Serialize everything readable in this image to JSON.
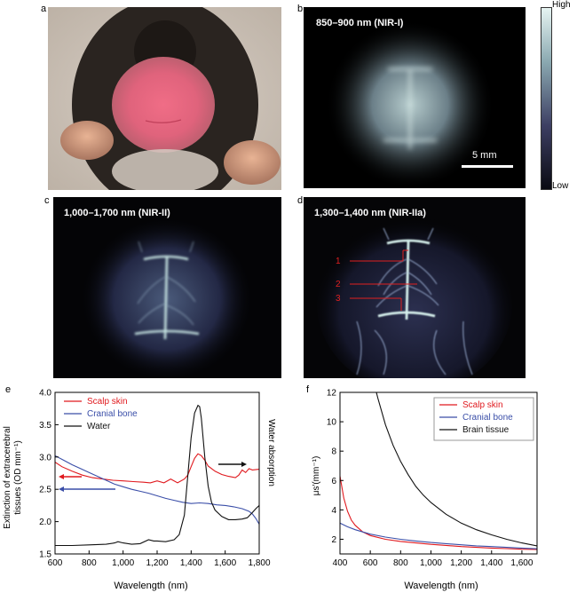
{
  "panels": {
    "a": {
      "label": "a"
    },
    "b": {
      "label": "b",
      "title": "850–900 nm (NIR-I)",
      "scalebar": "5 mm"
    },
    "c": {
      "label": "c",
      "title": "1,000–1,700 nm (NIR-II)"
    },
    "d": {
      "label": "d",
      "title": "1,300–1,400 nm (NIR-IIa)",
      "markers": [
        "1",
        "2",
        "3"
      ]
    },
    "e": {
      "label": "e"
    },
    "f": {
      "label": "f"
    }
  },
  "colorbar": {
    "high": "High",
    "low": "Low"
  },
  "colors": {
    "red": "#e0191e",
    "blue": "#3a4ea8",
    "black": "#111111"
  },
  "chart_data": [
    {
      "id": "e",
      "type": "line",
      "xlabel": "Wavelength (nm)",
      "ylabel_lines": [
        "Extinction of extracerebral",
        "tissues (OD mm⁻¹)"
      ],
      "ylabel_right": "Water absorption",
      "xlim": [
        600,
        1800
      ],
      "ylim": [
        1.5,
        4.0
      ],
      "xticks": [
        600,
        800,
        1000,
        1200,
        1400,
        1600,
        1800
      ],
      "xticklabels": [
        "600",
        "800",
        "1,000",
        "1,200",
        "1,400",
        "1,600",
        "1,800"
      ],
      "yticks": [
        1.5,
        2.0,
        2.5,
        3.0,
        3.5,
        4.0
      ],
      "yticklabels": [
        "1.5",
        "2.0",
        "2.5",
        "3.0",
        "3.5",
        "4.0"
      ],
      "legend_position": "top-left",
      "series": [
        {
          "name": "Scalp skin",
          "color": "#e0191e",
          "x": [
            600,
            640,
            700,
            760,
            820,
            880,
            940,
            1000,
            1060,
            1120,
            1160,
            1200,
            1240,
            1280,
            1320,
            1360,
            1380,
            1400,
            1420,
            1440,
            1460,
            1480,
            1500,
            1540,
            1580,
            1620,
            1660,
            1680,
            1700,
            1720,
            1740,
            1760,
            1800
          ],
          "y": [
            2.92,
            2.85,
            2.78,
            2.72,
            2.68,
            2.66,
            2.64,
            2.63,
            2.62,
            2.61,
            2.6,
            2.63,
            2.6,
            2.66,
            2.6,
            2.66,
            2.72,
            2.85,
            2.98,
            3.05,
            3.02,
            2.95,
            2.86,
            2.78,
            2.73,
            2.7,
            2.68,
            2.72,
            2.8,
            2.76,
            2.82,
            2.8,
            2.81
          ]
        },
        {
          "name": "Cranial bone",
          "color": "#3a4ea8",
          "x": [
            600,
            650,
            700,
            750,
            800,
            850,
            900,
            950,
            1000,
            1050,
            1100,
            1150,
            1200,
            1250,
            1300,
            1350,
            1400,
            1450,
            1500,
            1550,
            1600,
            1650,
            1700,
            1740,
            1760,
            1780,
            1800
          ],
          "y": [
            3.02,
            2.95,
            2.88,
            2.82,
            2.76,
            2.7,
            2.64,
            2.58,
            2.54,
            2.5,
            2.47,
            2.44,
            2.4,
            2.36,
            2.33,
            2.3,
            2.28,
            2.29,
            2.28,
            2.26,
            2.25,
            2.23,
            2.2,
            2.16,
            2.12,
            2.05,
            1.96
          ]
        },
        {
          "name": "Water",
          "color": "#111111",
          "x": [
            600,
            700,
            800,
            900,
            950,
            970,
            1000,
            1050,
            1100,
            1150,
            1180,
            1200,
            1250,
            1300,
            1330,
            1360,
            1380,
            1400,
            1420,
            1440,
            1450,
            1460,
            1480,
            1500,
            1520,
            1540,
            1580,
            1620,
            1660,
            1700,
            1730,
            1760,
            1780,
            1800
          ],
          "y": [
            1.63,
            1.63,
            1.64,
            1.65,
            1.67,
            1.69,
            1.67,
            1.65,
            1.66,
            1.72,
            1.7,
            1.7,
            1.69,
            1.72,
            1.8,
            2.1,
            2.7,
            3.3,
            3.68,
            3.8,
            3.78,
            3.6,
            3.0,
            2.55,
            2.3,
            2.18,
            2.08,
            2.03,
            2.03,
            2.04,
            2.06,
            2.14,
            2.2,
            2.25
          ]
        }
      ]
    },
    {
      "id": "f",
      "type": "line",
      "xlabel": "Wavelength (nm)",
      "ylabel": "μs′(mm⁻¹)",
      "xlim": [
        400,
        1700
      ],
      "ylim": [
        1,
        12
      ],
      "xticks": [
        400,
        600,
        800,
        1000,
        1200,
        1400,
        1600
      ],
      "xticklabels": [
        "400",
        "600",
        "800",
        "1,000",
        "1,200",
        "1,400",
        "1,600"
      ],
      "yticks": [
        2,
        4,
        6,
        8,
        10,
        12
      ],
      "yticklabels": [
        "2",
        "4",
        "6",
        "8",
        "10",
        "12"
      ],
      "legend_position": "top-right",
      "series": [
        {
          "name": "Scalp skin",
          "color": "#e0191e",
          "x": [
            400,
            425,
            450,
            475,
            500,
            550,
            600,
            700,
            800,
            900,
            1000,
            1100,
            1200,
            1300,
            1400,
            1500,
            1600,
            1700
          ],
          "y": [
            6.3,
            4.8,
            3.9,
            3.3,
            2.95,
            2.5,
            2.25,
            2.0,
            1.85,
            1.75,
            1.65,
            1.58,
            1.5,
            1.45,
            1.4,
            1.36,
            1.32,
            1.3
          ]
        },
        {
          "name": "Cranial bone",
          "color": "#3a4ea8",
          "x": [
            400,
            450,
            500,
            550,
            600,
            700,
            800,
            900,
            1000,
            1100,
            1200,
            1300,
            1400,
            1500,
            1600,
            1700
          ],
          "y": [
            3.1,
            2.85,
            2.65,
            2.5,
            2.35,
            2.15,
            2.0,
            1.88,
            1.78,
            1.7,
            1.62,
            1.55,
            1.5,
            1.45,
            1.4,
            1.35
          ]
        },
        {
          "name": "Brain tissue",
          "color": "#111111",
          "x": [
            640,
            650,
            700,
            750,
            800,
            850,
            900,
            950,
            1000,
            1100,
            1200,
            1300,
            1400,
            1500,
            1600,
            1700
          ],
          "y": [
            12.0,
            11.6,
            9.8,
            8.4,
            7.3,
            6.4,
            5.6,
            5.0,
            4.5,
            3.7,
            3.1,
            2.65,
            2.3,
            2.0,
            1.75,
            1.55
          ]
        }
      ]
    }
  ]
}
